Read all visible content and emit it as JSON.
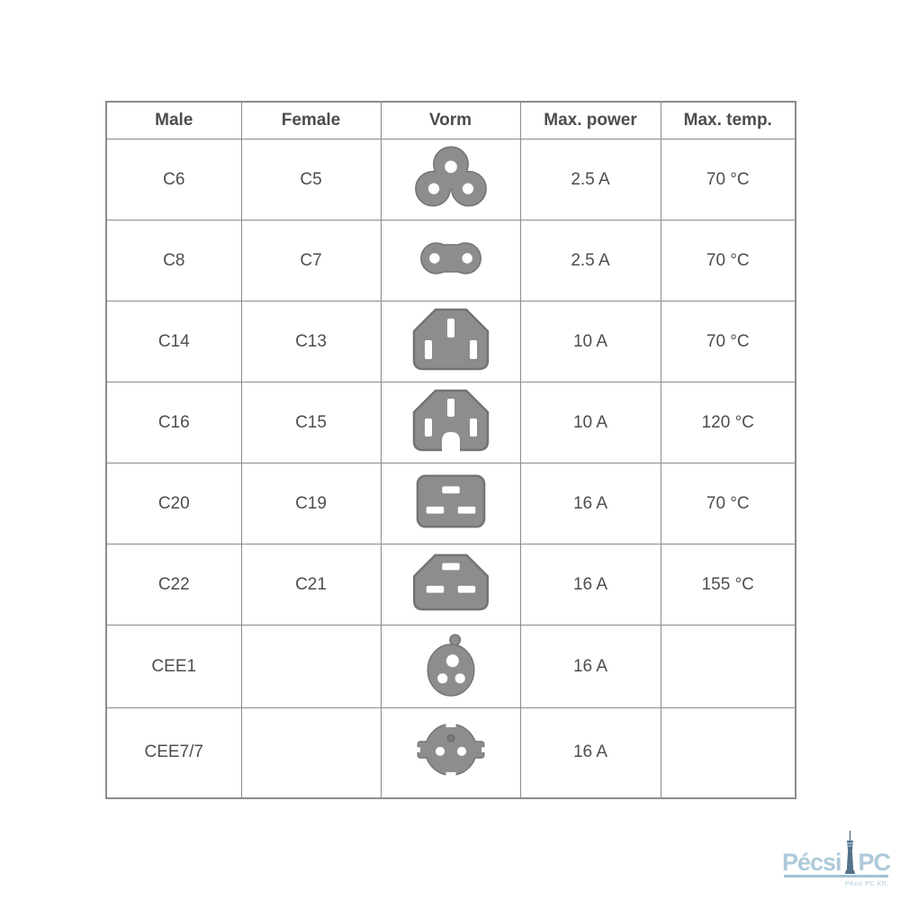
{
  "table": {
    "headers": [
      "Male",
      "Female",
      "Vorm",
      "Max. power",
      "Max. temp."
    ],
    "rows": [
      {
        "male": "C6",
        "female": "C5",
        "icon": "c5-cloverleaf",
        "max_power": "2.5 A",
        "max_temp": "70 °C"
      },
      {
        "male": "C8",
        "female": "C7",
        "icon": "c7-figure-eight",
        "max_power": "2.5 A",
        "max_temp": "70 °C"
      },
      {
        "male": "C14",
        "female": "C13",
        "icon": "c13-connector",
        "max_power": "10 A",
        "max_temp": "70 °C"
      },
      {
        "male": "C16",
        "female": "C15",
        "icon": "c15-connector",
        "max_power": "10 A",
        "max_temp": "120 °C"
      },
      {
        "male": "C20",
        "female": "C19",
        "icon": "c19-connector",
        "max_power": "16 A",
        "max_temp": "70 °C"
      },
      {
        "male": "C22",
        "female": "C21",
        "icon": "c21-connector",
        "max_power": "16 A",
        "max_temp": "155 °C"
      },
      {
        "male": "CEE1",
        "female": "",
        "icon": "cee1-plug",
        "max_power": "16 A",
        "max_temp": ""
      },
      {
        "male": "CEE7/7",
        "female": "",
        "icon": "cee77-schuko",
        "max_power": "16 A",
        "max_temp": ""
      }
    ]
  },
  "chart_data": {
    "type": "table",
    "title": "",
    "columns": [
      "Male",
      "Female",
      "Vorm",
      "Max. power",
      "Max. temp."
    ],
    "rows": [
      [
        "C6",
        "C5",
        "cloverleaf connector icon",
        "2.5 A",
        "70 °C"
      ],
      [
        "C8",
        "C7",
        "figure-eight connector icon",
        "2.5 A",
        "70 °C"
      ],
      [
        "C14",
        "C13",
        "chamfered connector with 3 vertical slots icon",
        "10 A",
        "70 °C"
      ],
      [
        "C16",
        "C15",
        "chamfered connector with bottom notch icon",
        "10 A",
        "120 °C"
      ],
      [
        "C20",
        "C19",
        "rectangular connector with 3 horizontal slots icon",
        "16 A",
        "70 °C"
      ],
      [
        "C22",
        "C21",
        "chamfered connector with 3 horizontal slots icon",
        "16 A",
        "155 °C"
      ],
      [
        "CEE1",
        "",
        "round 3-pin plug icon",
        "16 A",
        ""
      ],
      [
        "CEE7/7",
        "",
        "schuko plug icon",
        "16 A",
        ""
      ]
    ]
  },
  "watermark": {
    "brand_primary": "Pécsi",
    "brand_secondary": "PC",
    "subtext": "Pécsi PC Kft."
  },
  "colors": {
    "background": "#ffffff",
    "table_border": "#8c8c8c",
    "text": "#4d4d4d",
    "icon_fill": "#8d8d8d",
    "icon_outline": "#737373",
    "icon_hole": "#ffffff",
    "logo_light_blue": "#aac7d9",
    "logo_dark_blue": "#4a6b85"
  }
}
